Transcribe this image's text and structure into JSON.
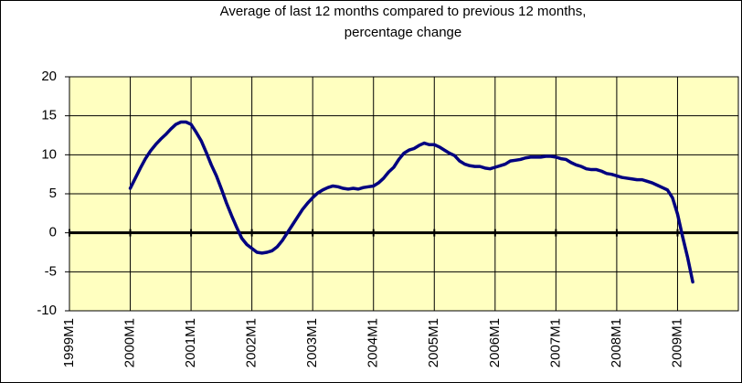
{
  "chart_data": {
    "type": "line",
    "title": [
      "Average of last 12 months compared to previous 12 months,",
      "percentage change"
    ],
    "categories": [
      "1999M1",
      null,
      null,
      null,
      null,
      null,
      null,
      null,
      null,
      null,
      null,
      null,
      "2000M1",
      null,
      null,
      null,
      null,
      null,
      null,
      null,
      null,
      null,
      null,
      null,
      "2001M1",
      null,
      null,
      null,
      null,
      null,
      null,
      null,
      null,
      null,
      null,
      null,
      "2002M1",
      null,
      null,
      null,
      null,
      null,
      null,
      null,
      null,
      null,
      null,
      null,
      "2003M1",
      null,
      null,
      null,
      null,
      null,
      null,
      null,
      null,
      null,
      null,
      null,
      "2004M1",
      null,
      null,
      null,
      null,
      null,
      null,
      null,
      null,
      null,
      null,
      null,
      "2005M1",
      null,
      null,
      null,
      null,
      null,
      null,
      null,
      null,
      null,
      null,
      null,
      "2006M1",
      null,
      null,
      null,
      null,
      null,
      null,
      null,
      null,
      null,
      null,
      null,
      "2007M1",
      null,
      null,
      null,
      null,
      null,
      null,
      null,
      null,
      null,
      null,
      null,
      "2008M1",
      null,
      null,
      null,
      null,
      null,
      null,
      null,
      null,
      null,
      null,
      null,
      "2009M1",
      null,
      null,
      null,
      null,
      null,
      null,
      null,
      null,
      null,
      null,
      null
    ],
    "values": [
      null,
      null,
      null,
      null,
      null,
      null,
      null,
      null,
      null,
      null,
      null,
      null,
      5.7,
      7.0,
      8.3,
      9.5,
      10.5,
      11.3,
      12.0,
      12.6,
      13.3,
      13.9,
      14.2,
      14.2,
      13.9,
      12.9,
      11.8,
      10.3,
      8.7,
      7.3,
      5.6,
      3.8,
      2.2,
      0.7,
      -0.7,
      -1.5,
      -2.0,
      -2.5,
      -2.6,
      -2.5,
      -2.3,
      -1.8,
      -1.0,
      0.0,
      1.0,
      2.0,
      3.0,
      3.8,
      4.5,
      5.1,
      5.5,
      5.8,
      6.0,
      5.9,
      5.7,
      5.6,
      5.7,
      5.6,
      5.8,
      5.9,
      6.0,
      6.4,
      7.0,
      7.8,
      8.4,
      9.4,
      10.2,
      10.6,
      10.8,
      11.2,
      11.5,
      11.3,
      11.3,
      11.0,
      10.6,
      10.2,
      9.9,
      9.2,
      8.8,
      8.6,
      8.5,
      8.5,
      8.3,
      8.2,
      8.4,
      8.6,
      8.8,
      9.2,
      9.3,
      9.4,
      9.6,
      9.7,
      9.7,
      9.7,
      9.8,
      9.8,
      9.7,
      9.5,
      9.4,
      9.0,
      8.7,
      8.5,
      8.2,
      8.1,
      8.1,
      7.9,
      7.6,
      7.5,
      7.3,
      7.1,
      7.0,
      6.9,
      6.8,
      6.8,
      6.6,
      6.4,
      6.1,
      5.8,
      5.5,
      4.5,
      2.4,
      -0.5,
      -3.2,
      -6.3,
      null,
      null,
      null,
      null,
      null,
      null,
      null,
      null
    ],
    "color": "#000080",
    "background": "#ffffc0",
    "ylim": [
      -10,
      20
    ],
    "yticks": [
      -10,
      -5,
      0,
      5,
      10,
      15,
      20
    ],
    "grid": true
  }
}
